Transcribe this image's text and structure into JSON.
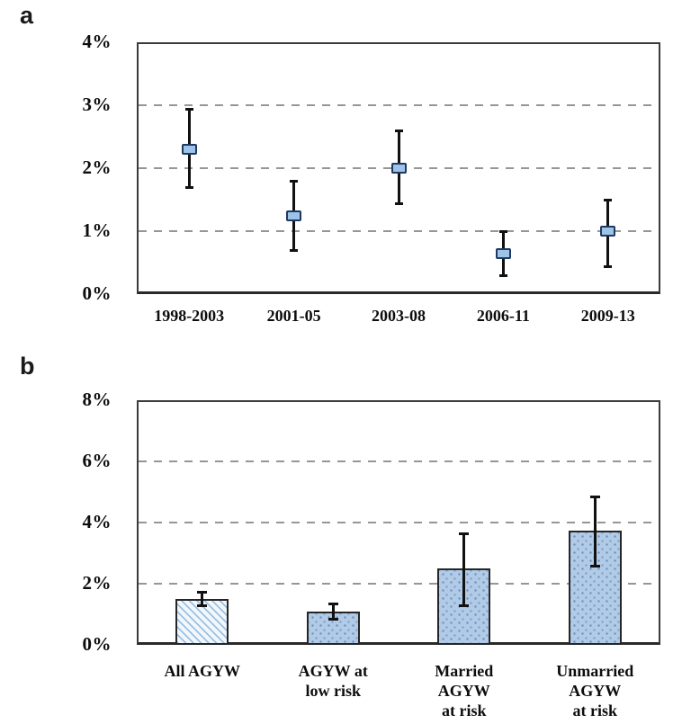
{
  "figure_title": "",
  "style": {
    "background": "#ffffff",
    "marker_fill": "#9dc3e6",
    "marker_border": "#1f3864",
    "bar_fill": "#b1cae6",
    "bar_dot_color": "#6d8fc0",
    "hatch_line_color": "#9cc0e4",
    "bar_border": "#262626",
    "frame_color": "#3b3b3b",
    "gridline_color": "#969696",
    "errorbar_color": "#111111",
    "text_color": "#0d0d0d"
  },
  "chart_data": [
    {
      "panel_label": "a",
      "type": "scatter",
      "subtype": "point-estimates-with-error-bars",
      "categories": [
        "1998-2003",
        "2001-05",
        "2003-08",
        "2006-11",
        "2009-13"
      ],
      "values": [
        2.3,
        1.25,
        2.0,
        0.65,
        1.0
      ],
      "ci_low": [
        1.7,
        0.7,
        1.45,
        0.3,
        0.45
      ],
      "ci_high": [
        2.95,
        1.8,
        2.6,
        1.0,
        1.5
      ],
      "unit": "%",
      "title": "",
      "xlabel": "",
      "ylabel": "",
      "ylim": [
        0,
        4
      ],
      "yticks": [
        0,
        1,
        2,
        3,
        4
      ],
      "ytick_labels": [
        "0%",
        "1%",
        "2%",
        "3%",
        "4%"
      ],
      "grid": "horizontal dashed at 1%, 2%, 3%",
      "legend": "none"
    },
    {
      "panel_label": "b",
      "type": "bar",
      "subtype": "bars-with-error-bars",
      "categories": [
        "All AGYW",
        "AGYW at\nlow risk",
        "Married\nAGYW\nat risk",
        "Unmarried\nAGYW\nat risk"
      ],
      "values": [
        1.5,
        1.1,
        2.5,
        3.75
      ],
      "ci_low": [
        1.3,
        0.85,
        1.3,
        2.6
      ],
      "ci_high": [
        1.75,
        1.35,
        3.65,
        4.85
      ],
      "bar_patterns": [
        "diagonal-hatch",
        "dotted",
        "dotted",
        "dotted"
      ],
      "unit": "%",
      "title": "",
      "xlabel": "",
      "ylabel": "",
      "ylim": [
        0,
        8
      ],
      "yticks": [
        0,
        2,
        4,
        6,
        8
      ],
      "ytick_labels": [
        "0%",
        "2%",
        "4%",
        "6%",
        "8%"
      ],
      "grid": "horizontal dashed at 2%, 4%, 6%",
      "legend": "none"
    }
  ]
}
